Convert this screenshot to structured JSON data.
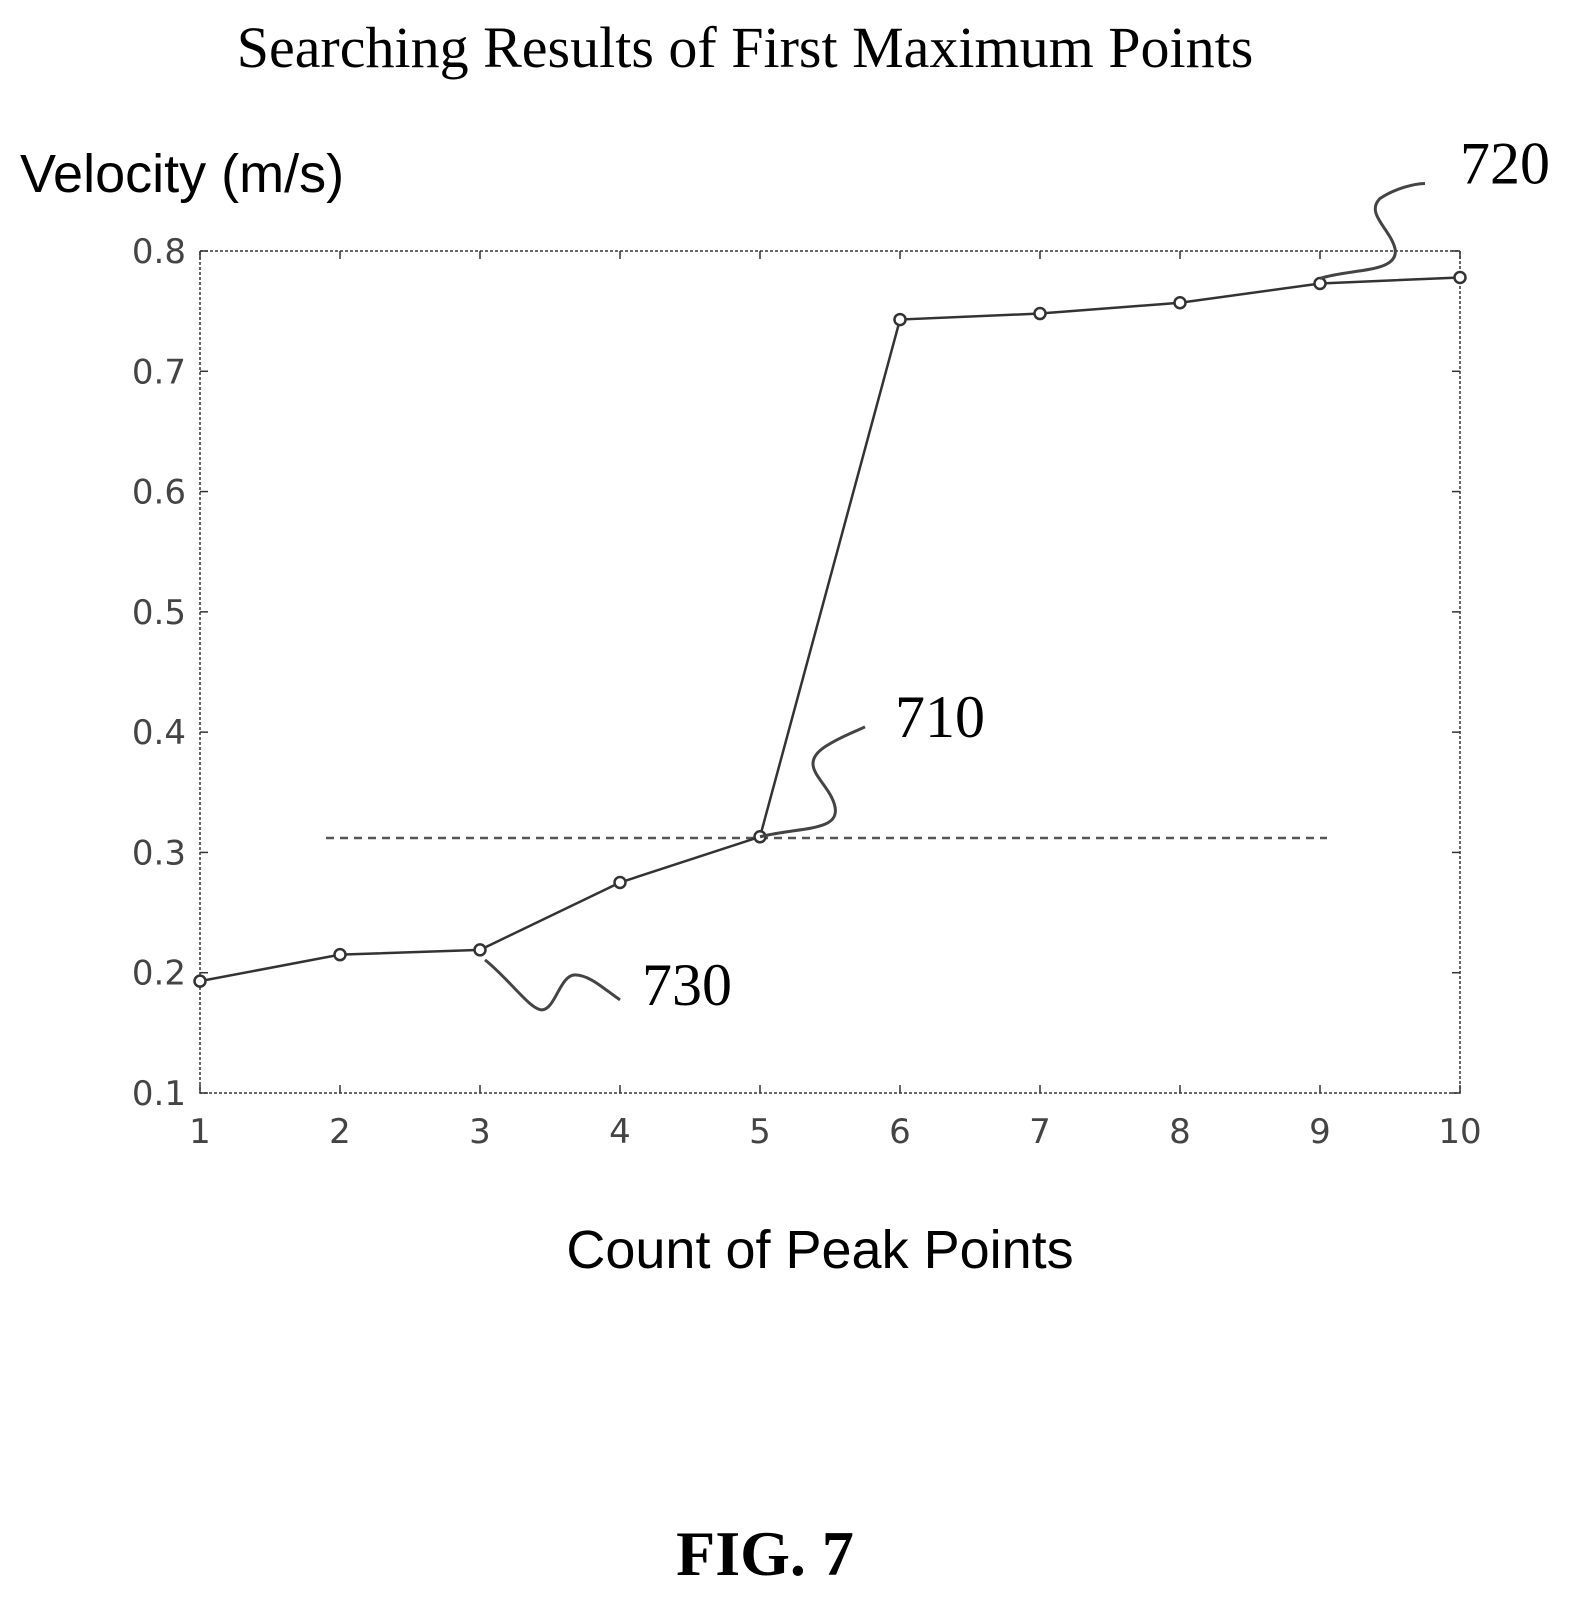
{
  "chart_data": {
    "type": "line",
    "title": "Searching Results of First Maximum Points",
    "ylabel": "Velocity (m/s)",
    "xlabel": "Count of Peak Points",
    "xlim": [
      1,
      10
    ],
    "ylim": [
      0.1,
      0.8
    ],
    "xticks": [
      "1",
      "2",
      "3",
      "4",
      "5",
      "6",
      "7",
      "8",
      "9",
      "10"
    ],
    "yticks": [
      "0.1",
      "0.2",
      "0.3",
      "0.4",
      "0.5",
      "0.6",
      "0.7",
      "0.8"
    ],
    "grid": false,
    "series": [
      {
        "x": [
          1,
          2,
          3,
          4,
          5,
          6,
          7,
          8,
          9,
          10
        ],
        "values": [
          0.193,
          0.215,
          0.219,
          0.275,
          0.313,
          0.743,
          0.748,
          0.757,
          0.773,
          0.778
        ]
      }
    ],
    "threshold": {
      "y": 0.312,
      "x": [
        1.9,
        9.05
      ],
      "style": "dashed"
    },
    "annotations": [
      {
        "text": "710",
        "x": 5,
        "y": 0.313
      },
      {
        "text": "720",
        "x": 9,
        "y": 0.773
      },
      {
        "text": "730",
        "x": 3,
        "y": 0.219
      }
    ]
  },
  "figure_label": "FIG. 7"
}
